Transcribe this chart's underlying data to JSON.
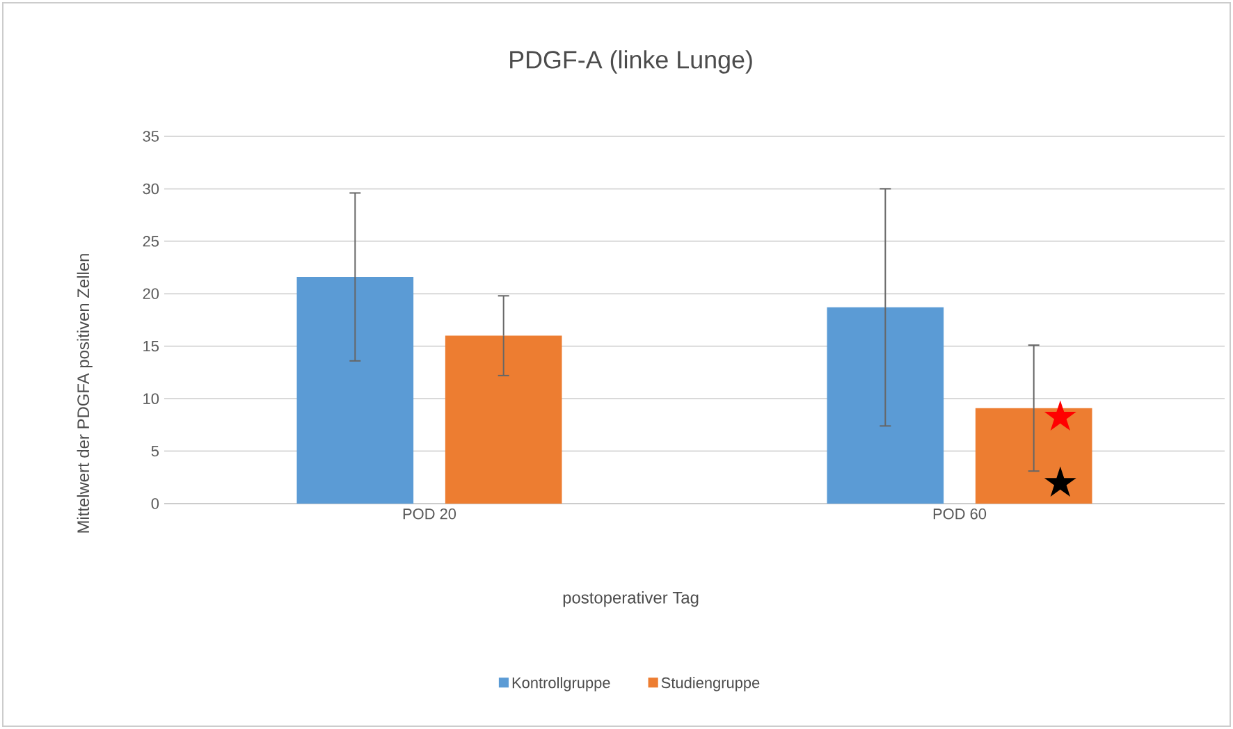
{
  "chart_data": {
    "type": "bar",
    "title": "PDGF-A (linke Lunge)",
    "xlabel": "postoperativer Tag",
    "ylabel": "Mittelwert der PDGFA positiven Zellen",
    "categories": [
      "POD 20",
      "POD 60"
    ],
    "series": [
      {
        "name": "Kontrollgruppe",
        "color": "#5b9bd5",
        "values": [
          21.6,
          18.7
        ],
        "errors": [
          8.0,
          11.3
        ]
      },
      {
        "name": "Studiengruppe",
        "color": "#ed7d31",
        "values": [
          16.0,
          9.1
        ],
        "errors": [
          3.8,
          6.0
        ]
      }
    ],
    "annotations": [
      "★",
      "★"
    ],
    "ylim": [
      0,
      35
    ],
    "yticks": [
      0,
      5,
      10,
      15,
      20,
      25,
      30,
      35
    ],
    "grid": "y",
    "legend": "bottom"
  }
}
